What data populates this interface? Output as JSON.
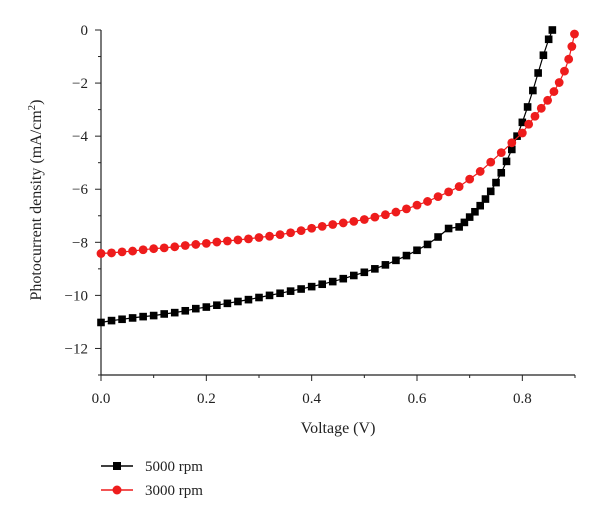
{
  "chart_data": {
    "type": "scatter",
    "title": "",
    "xlabel": "Voltage (V)",
    "ylabel_main": "Photocurrent density (mA/cm",
    "ylabel_sup": "2",
    "ylabel_close": ")",
    "xlim": [
      0.0,
      0.9
    ],
    "ylim": [
      -13,
      0
    ],
    "x_ticks": [
      0.0,
      0.2,
      0.4,
      0.6,
      0.8
    ],
    "x_tick_labels": [
      "0.0",
      "0.2",
      "0.4",
      "0.6",
      "0.8"
    ],
    "y_ticks": [
      0,
      -2,
      -4,
      -6,
      -8,
      -10,
      -12
    ],
    "y_tick_labels": [
      "0",
      "−2",
      "−4",
      "−6",
      "−8",
      "−10",
      "−12"
    ],
    "grid": false,
    "legend_position": "bottom-left",
    "series": [
      {
        "name": "5000 rpm",
        "marker": "square",
        "color": "#000000",
        "points": [
          [
            0.0,
            -11.02
          ],
          [
            0.02,
            -10.95
          ],
          [
            0.04,
            -10.9
          ],
          [
            0.06,
            -10.85
          ],
          [
            0.08,
            -10.8
          ],
          [
            0.1,
            -10.76
          ],
          [
            0.12,
            -10.7
          ],
          [
            0.14,
            -10.65
          ],
          [
            0.16,
            -10.58
          ],
          [
            0.18,
            -10.5
          ],
          [
            0.2,
            -10.44
          ],
          [
            0.22,
            -10.37
          ],
          [
            0.24,
            -10.3
          ],
          [
            0.26,
            -10.23
          ],
          [
            0.28,
            -10.16
          ],
          [
            0.3,
            -10.08
          ],
          [
            0.32,
            -10.0
          ],
          [
            0.34,
            -9.92
          ],
          [
            0.36,
            -9.84
          ],
          [
            0.38,
            -9.76
          ],
          [
            0.4,
            -9.67
          ],
          [
            0.42,
            -9.58
          ],
          [
            0.44,
            -9.48
          ],
          [
            0.46,
            -9.37
          ],
          [
            0.48,
            -9.25
          ],
          [
            0.5,
            -9.13
          ],
          [
            0.52,
            -9.0
          ],
          [
            0.54,
            -8.85
          ],
          [
            0.56,
            -8.68
          ],
          [
            0.58,
            -8.5
          ],
          [
            0.6,
            -8.3
          ],
          [
            0.62,
            -8.08
          ],
          [
            0.64,
            -7.8
          ],
          [
            0.66,
            -7.48
          ],
          [
            0.68,
            -7.42
          ],
          [
            0.69,
            -7.25
          ],
          [
            0.7,
            -7.05
          ],
          [
            0.71,
            -6.85
          ],
          [
            0.72,
            -6.62
          ],
          [
            0.73,
            -6.37
          ],
          [
            0.74,
            -6.08
          ],
          [
            0.75,
            -5.75
          ],
          [
            0.76,
            -5.38
          ],
          [
            0.77,
            -4.95
          ],
          [
            0.78,
            -4.5
          ],
          [
            0.79,
            -4.0
          ],
          [
            0.8,
            -3.48
          ],
          [
            0.81,
            -2.9
          ],
          [
            0.82,
            -2.28
          ],
          [
            0.83,
            -1.62
          ],
          [
            0.84,
            -0.95
          ],
          [
            0.85,
            -0.35
          ],
          [
            0.857,
            0.0
          ]
        ]
      },
      {
        "name": "3000 rpm",
        "marker": "circle",
        "color": "#ee1c1c",
        "points": [
          [
            0.0,
            -8.42
          ],
          [
            0.02,
            -8.4
          ],
          [
            0.04,
            -8.36
          ],
          [
            0.06,
            -8.33
          ],
          [
            0.08,
            -8.28
          ],
          [
            0.1,
            -8.24
          ],
          [
            0.12,
            -8.21
          ],
          [
            0.14,
            -8.17
          ],
          [
            0.16,
            -8.12
          ],
          [
            0.18,
            -8.08
          ],
          [
            0.2,
            -8.04
          ],
          [
            0.22,
            -7.99
          ],
          [
            0.24,
            -7.95
          ],
          [
            0.26,
            -7.91
          ],
          [
            0.28,
            -7.87
          ],
          [
            0.3,
            -7.82
          ],
          [
            0.32,
            -7.77
          ],
          [
            0.34,
            -7.71
          ],
          [
            0.36,
            -7.64
          ],
          [
            0.38,
            -7.56
          ],
          [
            0.4,
            -7.47
          ],
          [
            0.42,
            -7.4
          ],
          [
            0.44,
            -7.33
          ],
          [
            0.46,
            -7.27
          ],
          [
            0.48,
            -7.21
          ],
          [
            0.5,
            -7.14
          ],
          [
            0.52,
            -7.05
          ],
          [
            0.54,
            -6.96
          ],
          [
            0.56,
            -6.86
          ],
          [
            0.58,
            -6.74
          ],
          [
            0.6,
            -6.6
          ],
          [
            0.62,
            -6.46
          ],
          [
            0.64,
            -6.28
          ],
          [
            0.66,
            -6.1
          ],
          [
            0.68,
            -5.9
          ],
          [
            0.7,
            -5.62
          ],
          [
            0.72,
            -5.33
          ],
          [
            0.74,
            -4.98
          ],
          [
            0.76,
            -4.62
          ],
          [
            0.78,
            -4.25
          ],
          [
            0.8,
            -3.88
          ],
          [
            0.812,
            -3.55
          ],
          [
            0.824,
            -3.25
          ],
          [
            0.836,
            -2.95
          ],
          [
            0.848,
            -2.65
          ],
          [
            0.86,
            -2.32
          ],
          [
            0.87,
            -1.98
          ],
          [
            0.88,
            -1.55
          ],
          [
            0.888,
            -1.1
          ],
          [
            0.894,
            -0.62
          ],
          [
            0.899,
            -0.15
          ]
        ]
      }
    ]
  }
}
